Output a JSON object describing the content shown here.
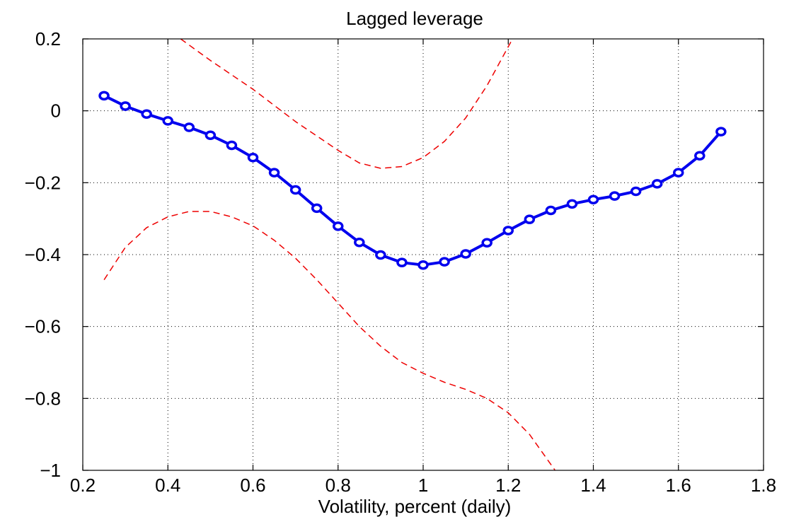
{
  "chart_data": {
    "type": "line",
    "title": "Lagged leverage",
    "xlabel": "Volatility, percent (daily)",
    "ylabel": "",
    "xlim": [
      0.2,
      1.8
    ],
    "ylim": [
      -1,
      0.2
    ],
    "xticks": [
      0.2,
      0.4,
      0.6,
      0.8,
      1.0,
      1.2,
      1.4,
      1.6,
      1.8
    ],
    "xtick_labels": [
      "0.2",
      "0.4",
      "0.6",
      "0.8",
      "1",
      "1.2",
      "1.4",
      "1.6",
      "1.8"
    ],
    "yticks": [
      0.2,
      0,
      -0.2,
      -0.4,
      -0.6,
      -0.8,
      -1
    ],
    "ytick_labels": [
      "0.2",
      "0",
      "−0.2",
      "−0.4",
      "−0.6",
      "−0.8",
      "−1"
    ],
    "grid": true,
    "series": [
      {
        "style": "solid-circle-markers",
        "color": "#0000ee",
        "x": [
          0.25,
          0.3,
          0.35,
          0.4,
          0.45,
          0.5,
          0.55,
          0.6,
          0.65,
          0.7,
          0.75,
          0.8,
          0.85,
          0.9,
          0.95,
          1.0,
          1.05,
          1.1,
          1.15,
          1.2,
          1.25,
          1.3,
          1.35,
          1.4,
          1.45,
          1.5,
          1.55,
          1.6,
          1.65,
          1.7
        ],
        "y": [
          0.042,
          0.013,
          -0.009,
          -0.028,
          -0.046,
          -0.068,
          -0.096,
          -0.13,
          -0.172,
          -0.22,
          -0.271,
          -0.321,
          -0.366,
          -0.401,
          -0.422,
          -0.429,
          -0.42,
          -0.398,
          -0.367,
          -0.333,
          -0.302,
          -0.277,
          -0.259,
          -0.247,
          -0.237,
          -0.224,
          -0.203,
          -0.172,
          -0.125,
          -0.058
        ]
      },
      {
        "style": "dashed",
        "color": "#ee0000",
        "x": [
          0.43,
          0.5,
          0.6,
          0.7,
          0.8,
          0.85,
          0.9,
          0.95,
          1.0,
          1.05,
          1.1,
          1.15,
          1.21
        ],
        "y": [
          0.2,
          0.14,
          0.06,
          -0.03,
          -0.11,
          -0.145,
          -0.16,
          -0.155,
          -0.13,
          -0.085,
          -0.02,
          0.07,
          0.2
        ]
      },
      {
        "style": "dashed",
        "color": "#ee0000",
        "x": [
          0.25,
          0.3,
          0.35,
          0.4,
          0.45,
          0.5,
          0.55,
          0.6,
          0.65,
          0.7,
          0.75,
          0.8,
          0.85,
          0.9,
          0.95,
          1.0,
          1.05,
          1.1,
          1.15,
          1.2,
          1.25,
          1.31
        ],
        "y": [
          -0.47,
          -0.38,
          -0.325,
          -0.295,
          -0.28,
          -0.28,
          -0.295,
          -0.32,
          -0.36,
          -0.41,
          -0.47,
          -0.535,
          -0.6,
          -0.655,
          -0.7,
          -0.73,
          -0.755,
          -0.775,
          -0.8,
          -0.84,
          -0.9,
          -1.0
        ]
      }
    ]
  }
}
